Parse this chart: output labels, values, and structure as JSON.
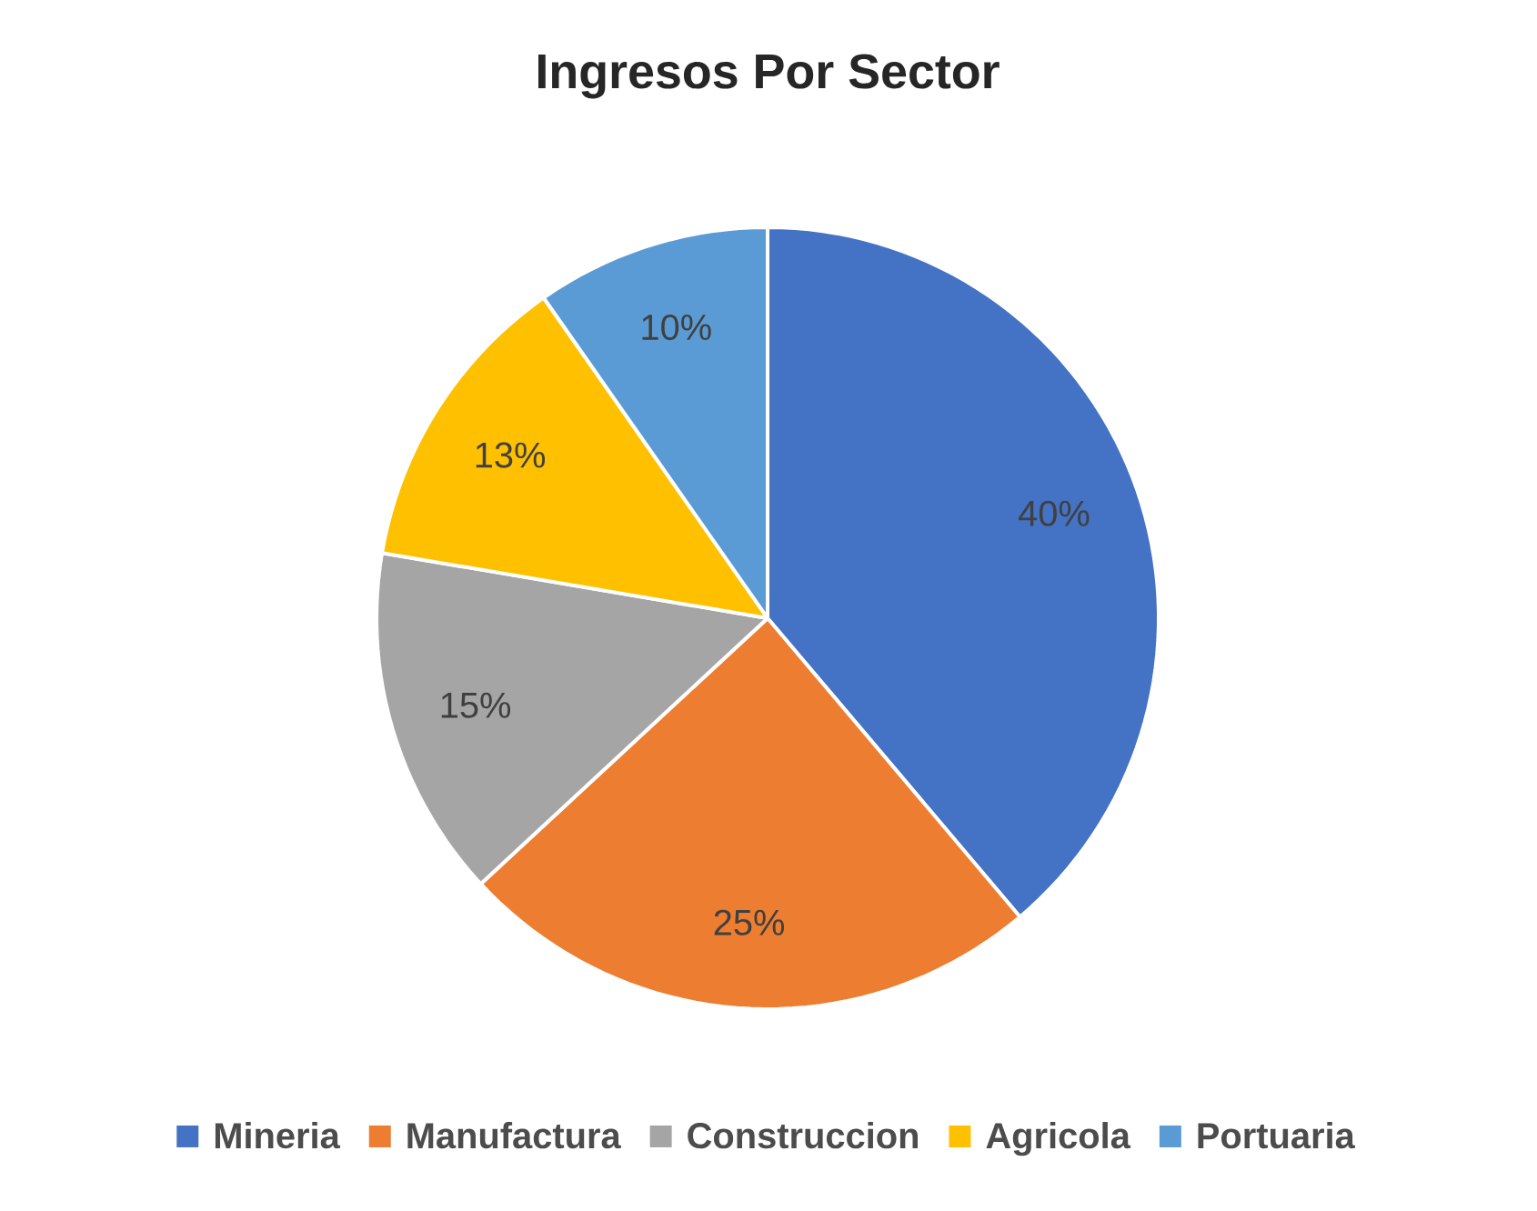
{
  "chart_data": {
    "type": "pie",
    "title": "Ingresos Por Sector",
    "categories": [
      "Mineria",
      "Manufactura",
      "Construccion",
      "Agricola",
      "Portuaria"
    ],
    "values": [
      40,
      25,
      15,
      13,
      10
    ],
    "value_labels": [
      "40%",
      "25%",
      "15%",
      "13%",
      "10%"
    ],
    "colors": [
      "#4472c4",
      "#ed7d31",
      "#a5a5a5",
      "#ffc000",
      "#5b9bd5"
    ],
    "legend": "bottom"
  }
}
